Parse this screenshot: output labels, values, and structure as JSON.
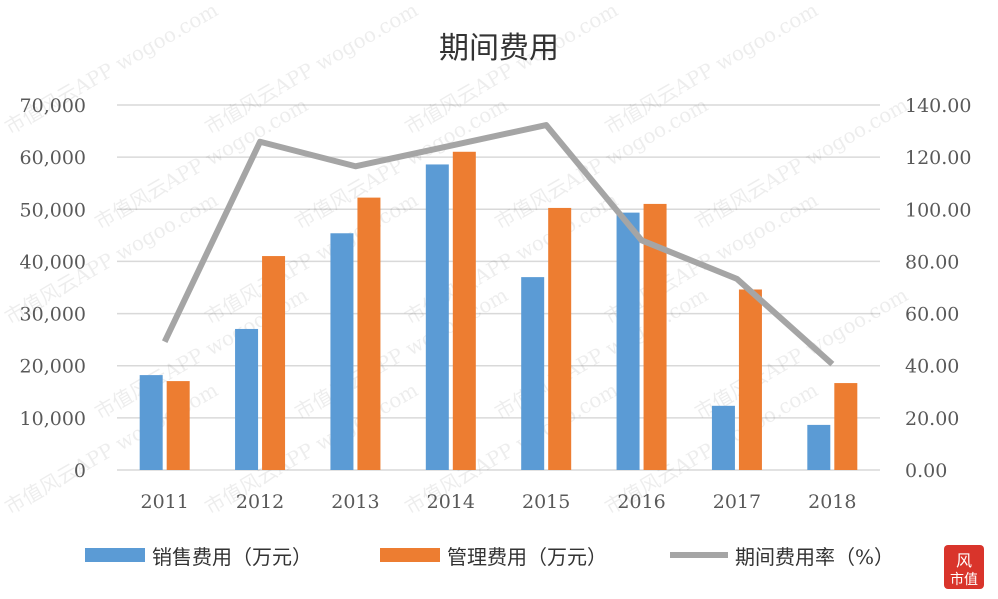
{
  "chart_data": {
    "type": "bar",
    "title": "期间费用",
    "categories": [
      "2011",
      "2012",
      "2013",
      "2014",
      "2015",
      "2016",
      "2017",
      "2018"
    ],
    "series": [
      {
        "name": "销售费用（万元）",
        "kind": "bar",
        "axis": "left",
        "color": "#5B9BD5",
        "values": [
          18200,
          27050,
          45400,
          58600,
          36990,
          49360,
          12310,
          8650
        ]
      },
      {
        "name": "管理费用（万元）",
        "kind": "bar",
        "axis": "left",
        "color": "#ED7D31",
        "values": [
          17050,
          41030,
          52240,
          61030,
          50260,
          51030,
          34620,
          16670
        ]
      },
      {
        "name": "期间费用率（%）",
        "kind": "line",
        "axis": "right",
        "color": "#A5A5A5",
        "values": [
          49.2,
          125.9,
          116.5,
          124.4,
          132.3,
          88.1,
          73.3,
          40.6
        ]
      }
    ],
    "left_axis": {
      "ylim": [
        0,
        70000
      ],
      "ticks": [
        "0",
        "10,000",
        "20,000",
        "30,000",
        "40,000",
        "50,000",
        "60,000",
        "70,000"
      ]
    },
    "right_axis": {
      "ylim": [
        0,
        140
      ],
      "ticks": [
        "0.00",
        "20.00",
        "40.00",
        "60.00",
        "80.00",
        "100.00",
        "120.00",
        "140.00"
      ]
    },
    "grid": true,
    "legend_position": "bottom"
  },
  "watermark": "市值风云APP wogoo.com",
  "logo": "风市值"
}
